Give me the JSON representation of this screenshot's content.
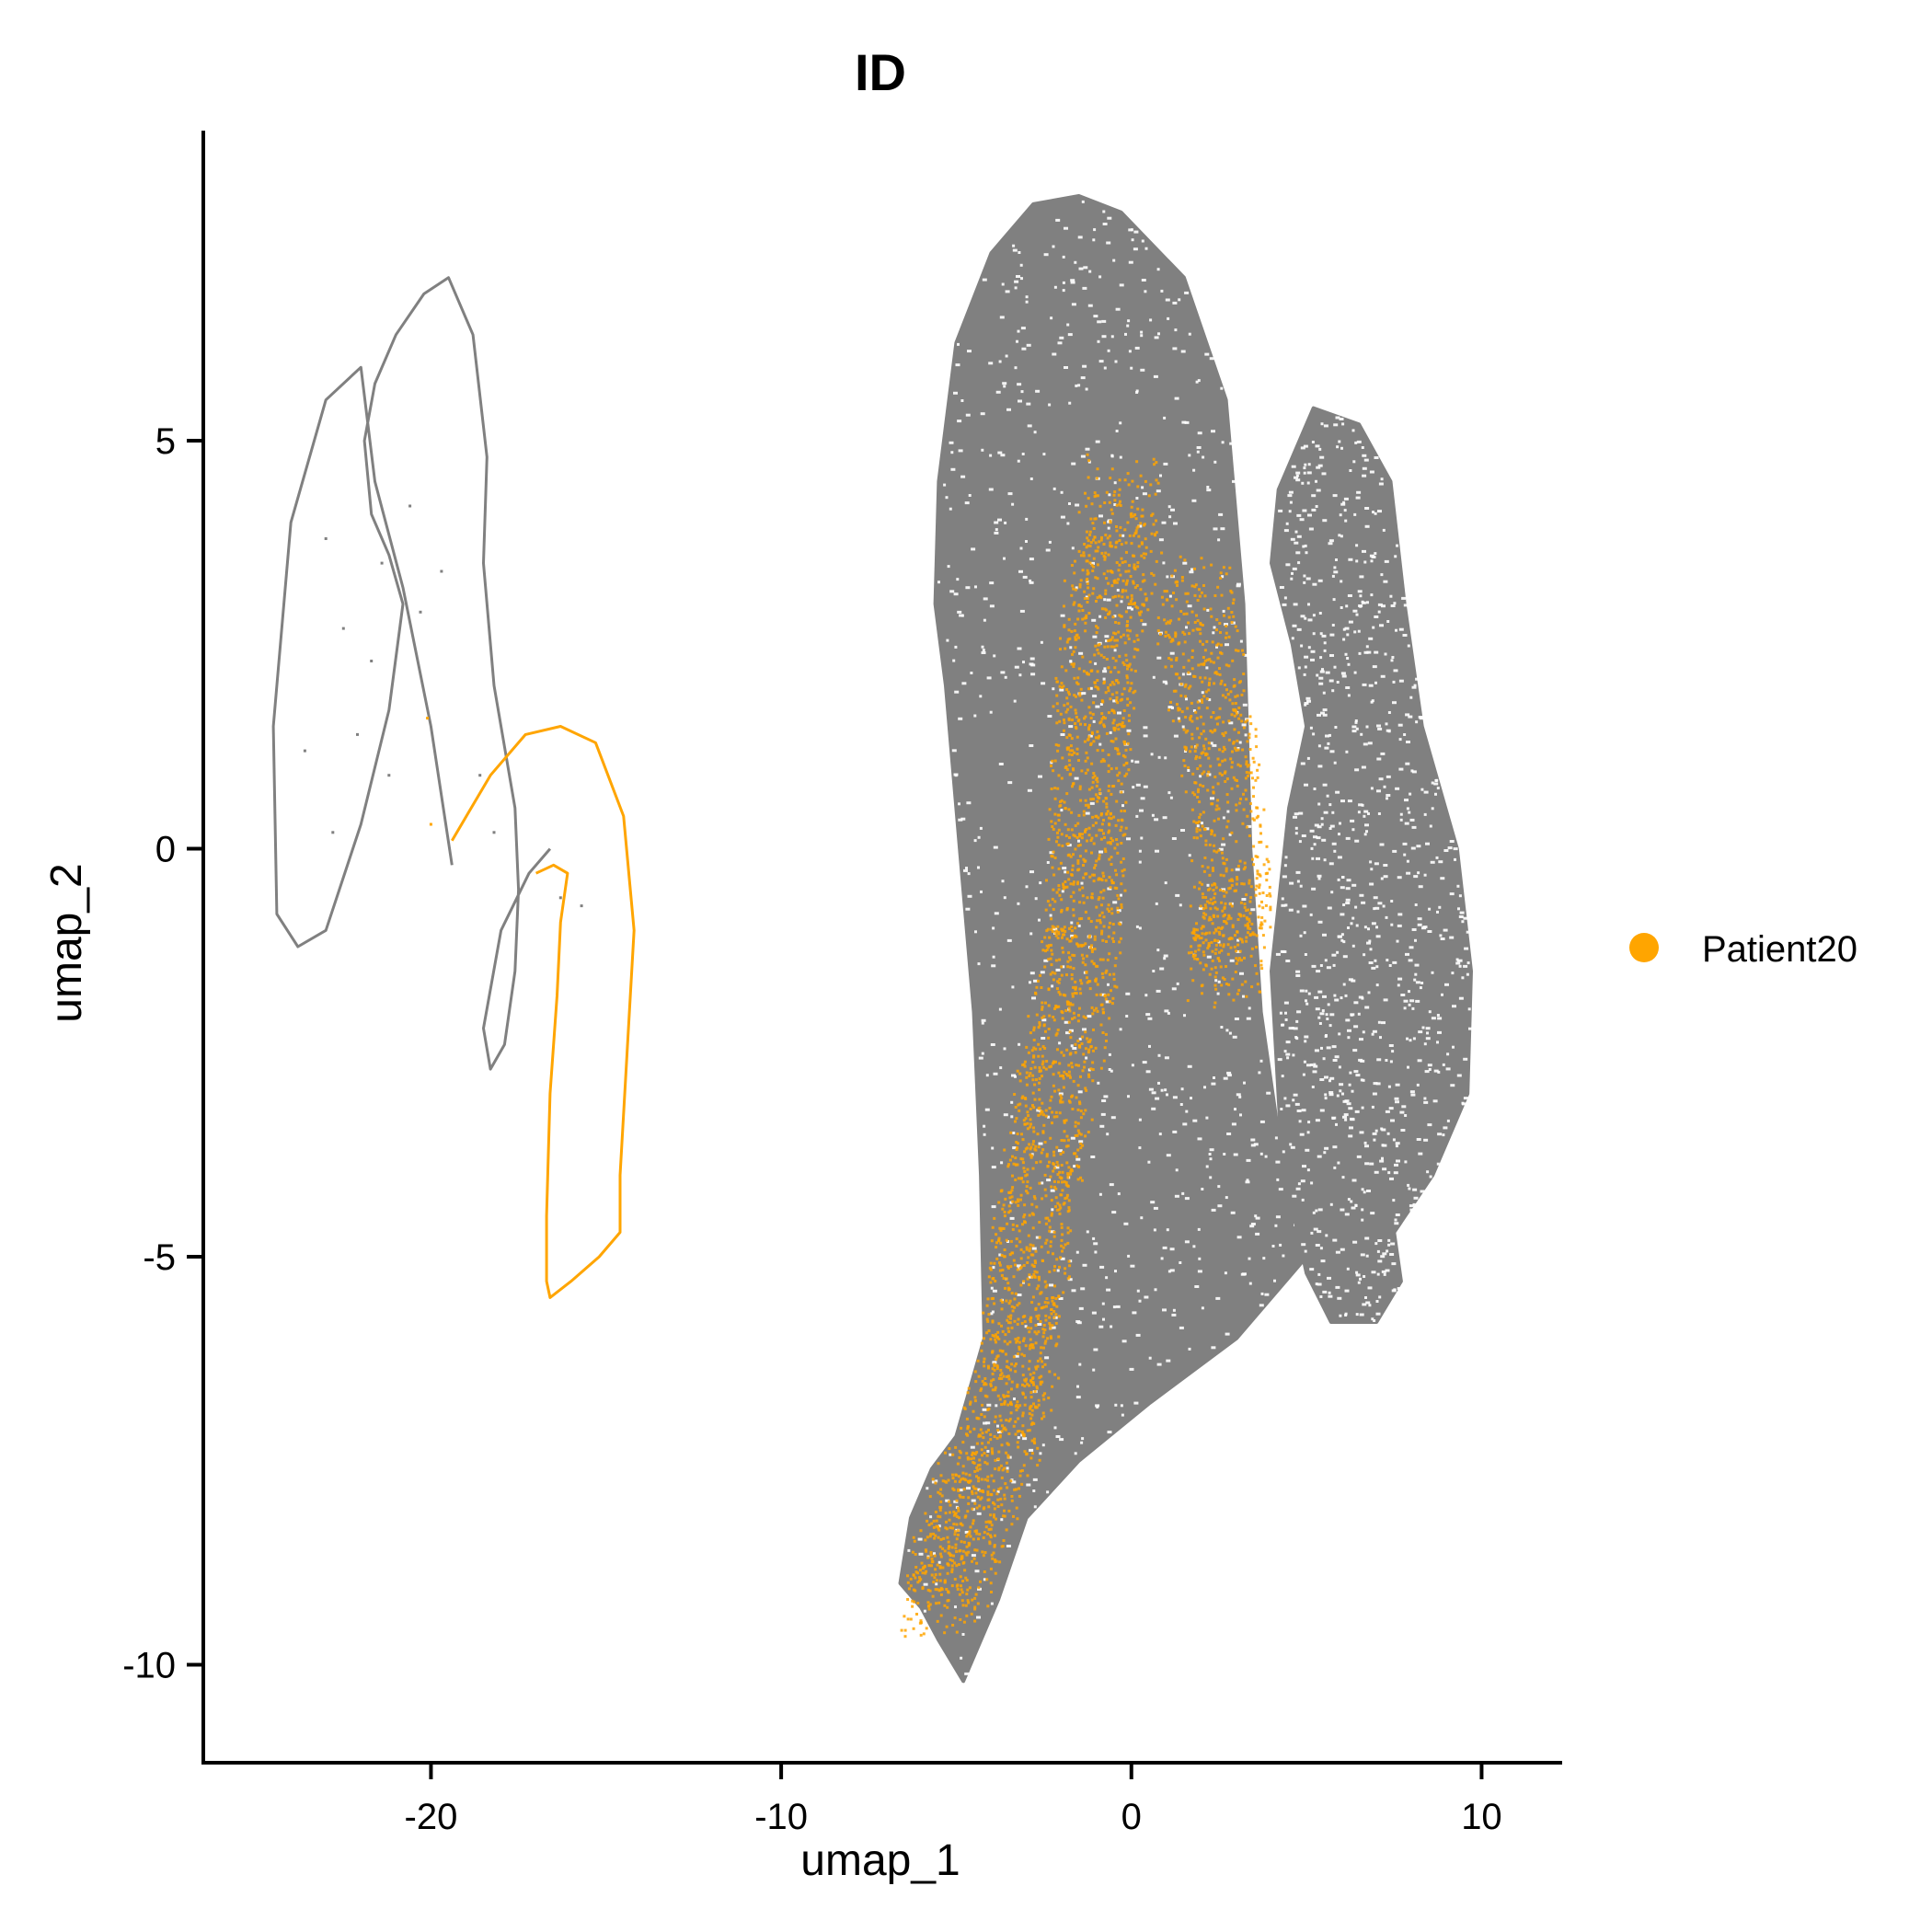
{
  "chart_data": {
    "type": "scatter",
    "title": "ID",
    "xlabel": "umap_1",
    "ylabel": "umap_2",
    "xlim": [
      -26.5,
      12.3
    ],
    "ylim": [
      -11.2,
      8.8
    ],
    "x_ticks": [
      -20,
      -10,
      0,
      10
    ],
    "x_tick_labels": [
      "-20",
      "-10",
      "0",
      "10"
    ],
    "y_ticks": [
      5,
      0,
      -5,
      -10
    ],
    "y_tick_labels": [
      "5",
      "0",
      "-5",
      "-10"
    ],
    "grid": false,
    "legend_position": "right",
    "series": [
      {
        "name": "",
        "color": "#808080",
        "role": "other cells",
        "regions": [
          {
            "kind": "blob",
            "outline": [
              [
                -1.5,
                8.0
              ],
              [
                -0.3,
                7.8
              ],
              [
                1.5,
                7.0
              ],
              [
                2.7,
                5.5
              ],
              [
                3.2,
                3.0
              ],
              [
                3.4,
                0.0
              ],
              [
                3.7,
                -2.0
              ],
              [
                4.2,
                -3.5
              ],
              [
                5.0,
                -5.0
              ],
              [
                3.0,
                -6.0
              ],
              [
                0.5,
                -6.8
              ],
              [
                -1.5,
                -7.5
              ],
              [
                -3.0,
                -8.2
              ],
              [
                -3.8,
                -9.2
              ],
              [
                -4.8,
                -10.2
              ],
              [
                -5.5,
                -9.7
              ],
              [
                -6.0,
                -9.3
              ],
              [
                -6.6,
                -9.0
              ],
              [
                -6.3,
                -8.2
              ],
              [
                -5.7,
                -7.6
              ],
              [
                -5.0,
                -7.2
              ],
              [
                -4.2,
                -6.0
              ],
              [
                -4.3,
                -4.0
              ],
              [
                -4.5,
                -2.0
              ],
              [
                -4.9,
                0.0
              ],
              [
                -5.3,
                2.0
              ],
              [
                -5.6,
                3.0
              ],
              [
                -5.5,
                4.5
              ],
              [
                -5.0,
                6.2
              ],
              [
                -4.0,
                7.3
              ],
              [
                -2.8,
                7.9
              ]
            ]
          },
          {
            "kind": "blob",
            "outline": [
              [
                5.2,
                5.4
              ],
              [
                6.5,
                5.2
              ],
              [
                7.4,
                4.5
              ],
              [
                7.8,
                3.0
              ],
              [
                8.3,
                1.5
              ],
              [
                9.3,
                0.0
              ],
              [
                9.7,
                -1.5
              ],
              [
                9.6,
                -3.0
              ],
              [
                8.6,
                -4.0
              ],
              [
                7.5,
                -4.7
              ],
              [
                7.7,
                -5.3
              ],
              [
                7.0,
                -5.8
              ],
              [
                5.7,
                -5.8
              ],
              [
                5.0,
                -5.2
              ],
              [
                4.3,
                -3.8
              ],
              [
                4.0,
                -1.5
              ],
              [
                4.5,
                0.5
              ],
              [
                5.0,
                1.5
              ],
              [
                4.6,
                2.5
              ],
              [
                4.0,
                3.5
              ],
              [
                4.2,
                4.4
              ]
            ]
          },
          {
            "kind": "curve",
            "points": [
              [
                -19.4,
                -0.2
              ],
              [
                -20.0,
                1.5
              ],
              [
                -20.8,
                3.2
              ],
              [
                -21.6,
                4.5
              ],
              [
                -22.0,
                5.9
              ],
              [
                -23.0,
                5.5
              ],
              [
                -24.0,
                4.0
              ],
              [
                -24.5,
                1.5
              ],
              [
                -24.4,
                -0.8
              ],
              [
                -23.8,
                -1.2
              ],
              [
                -23.0,
                -1.0
              ],
              [
                -22.0,
                0.3
              ],
              [
                -21.2,
                1.7
              ],
              [
                -20.8,
                3.0
              ],
              [
                -21.2,
                3.6
              ],
              [
                -21.7,
                4.1
              ],
              [
                -21.9,
                5.0
              ],
              [
                -21.6,
                5.7
              ],
              [
                -21.0,
                6.3
              ],
              [
                -20.2,
                6.8
              ],
              [
                -19.5,
                7.0
              ],
              [
                -18.8,
                6.3
              ],
              [
                -18.4,
                4.8
              ],
              [
                -18.5,
                3.5
              ],
              [
                -18.2,
                2.0
              ],
              [
                -17.6,
                0.5
              ],
              [
                -17.5,
                -0.5
              ],
              [
                -17.6,
                -1.5
              ],
              [
                -17.9,
                -2.4
              ],
              [
                -18.3,
                -2.7
              ],
              [
                -18.5,
                -2.2
              ],
              [
                -18.0,
                -1.0
              ],
              [
                -17.2,
                -0.3
              ],
              [
                -16.6,
                0.0
              ]
            ]
          },
          {
            "kind": "scatter",
            "points": [
              [
                -23.0,
                3.8
              ],
              [
                -22.5,
                2.7
              ],
              [
                -21.7,
                2.3
              ],
              [
                -20.3,
                2.9
              ],
              [
                -19.7,
                3.4
              ],
              [
                -21.2,
                0.9
              ],
              [
                -22.1,
                1.4
              ],
              [
                -23.6,
                1.2
              ],
              [
                -18.2,
                0.2
              ],
              [
                -16.3,
                -0.6
              ],
              [
                -15.7,
                -0.7
              ],
              [
                -18.6,
                0.9
              ],
              [
                -20.6,
                4.2
              ],
              [
                -21.4,
                3.5
              ],
              [
                -22.8,
                0.2
              ]
            ]
          }
        ]
      },
      {
        "name": "Patient20",
        "color": "#FFA500",
        "role": "highlighted cells",
        "regions": [
          {
            "kind": "curve",
            "points": [
              [
                -19.4,
                0.1
              ],
              [
                -18.3,
                0.9
              ],
              [
                -17.3,
                1.4
              ],
              [
                -16.3,
                1.5
              ],
              [
                -15.3,
                1.3
              ],
              [
                -14.5,
                0.4
              ],
              [
                -14.2,
                -1.0
              ],
              [
                -14.4,
                -2.5
              ],
              [
                -14.6,
                -4.0
              ],
              [
                -14.6,
                -4.7
              ],
              [
                -15.2,
                -5.0
              ],
              [
                -16.0,
                -5.3
              ],
              [
                -16.6,
                -5.5
              ],
              [
                -16.7,
                -5.3
              ],
              [
                -16.7,
                -4.5
              ],
              [
                -16.6,
                -3.0
              ],
              [
                -16.4,
                -1.8
              ],
              [
                -16.3,
                -0.9
              ],
              [
                -16.1,
                -0.3
              ],
              [
                -16.5,
                -0.2
              ],
              [
                -17.0,
                -0.3
              ]
            ]
          },
          {
            "kind": "density",
            "path": [
              [
                -0.2,
                4.4
              ],
              [
                -0.8,
                3.0
              ],
              [
                -1.2,
                1.5
              ],
              [
                -1.3,
                0.0
              ],
              [
                -1.5,
                -1.5
              ],
              [
                -2.2,
                -3.0
              ],
              [
                -2.8,
                -4.5
              ],
              [
                -3.2,
                -6.0
              ],
              [
                -3.8,
                -7.2
              ],
              [
                -4.8,
                -8.3
              ],
              [
                -5.6,
                -9.3
              ]
            ]
          },
          {
            "kind": "density",
            "path": [
              [
                1.6,
                3.2
              ],
              [
                2.4,
                1.5
              ],
              [
                2.9,
                -0.5
              ],
              [
                2.6,
                -1.5
              ]
            ]
          },
          {
            "kind": "scatter",
            "points": [
              [
                -20.1,
                1.6
              ],
              [
                -20.0,
                0.3
              ]
            ]
          }
        ]
      }
    ]
  }
}
